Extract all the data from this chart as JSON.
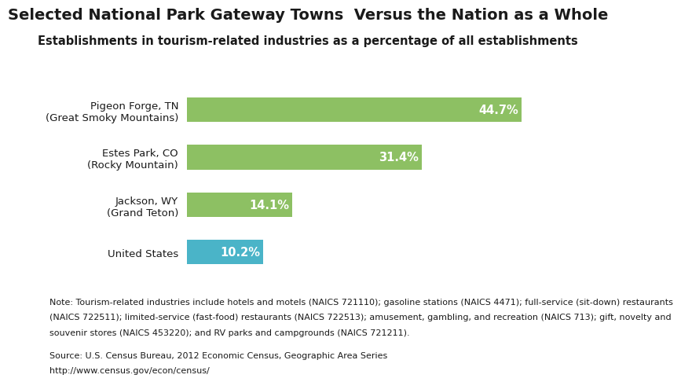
{
  "title": "Selected National Park Gateway Towns  Versus the Nation as a Whole",
  "subtitle": "Establishments in tourism-related industries as a percentage of all establishments",
  "categories": [
    "Pigeon Forge, TN\n(Great Smoky Mountains)",
    "Estes Park, CO\n(Rocky Mountain)",
    "Jackson, WY\n(Grand Teton)",
    "United States"
  ],
  "values": [
    44.7,
    31.4,
    14.1,
    10.2
  ],
  "labels": [
    "44.7%",
    "31.4%",
    "14.1%",
    "10.2%"
  ],
  "bar_colors": [
    "#8dc063",
    "#8dc063",
    "#8dc063",
    "#4ab4c8"
  ],
  "note_line1": "Note: Tourism-related industries include hotels and motels (NAICS 721110); gasoline stations (NAICS 4471); full-service (sit-down) restaurants",
  "note_line2": "(NAICS 722511); limited-service (fast-food) restaurants (NAICS 722513); amusement, gambling, and recreation (NAICS 713); gift, novelty and",
  "note_line3": "souvenir stores (NAICS 453220); and RV parks and campgrounds (NAICS 721211).",
  "source_line1": "Source: U.S. Census Bureau, 2012 Economic Census, Geographic Area Series",
  "source_line2": "http://www.census.gov/econ/census/",
  "bg_color": "#ffffff",
  "text_color": "#1a1a1a",
  "xlim": [
    0,
    50
  ],
  "title_fontsize": 14,
  "subtitle_fontsize": 10.5,
  "label_fontsize": 10.5,
  "tick_fontsize": 9.5,
  "note_fontsize": 8.0
}
